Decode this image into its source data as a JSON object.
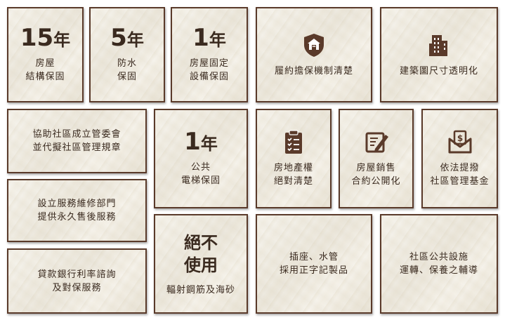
{
  "tiles": {
    "t_house15": {
      "number": "15",
      "unit": "年",
      "lines": [
        "房屋",
        "結構保固"
      ]
    },
    "t_water5": {
      "number": "5",
      "unit": "年",
      "lines": [
        "防水",
        "保固"
      ]
    },
    "t_fixed1": {
      "number": "1",
      "unit": "年",
      "lines": [
        "房屋固定",
        "設備保固"
      ]
    },
    "t_contract": {
      "icon": "shield-house-icon",
      "lines": [
        "履約擔保機制清楚"
      ]
    },
    "t_building": {
      "icon": "building-icon",
      "lines": [
        "建築圖尺寸透明化"
      ]
    },
    "t_assist": {
      "lines": [
        "協助社區成立管委會",
        "並代擬社區管理規章"
      ]
    },
    "t_elevator1": {
      "number": "1",
      "unit": "年",
      "lines": [
        "公共",
        "電梯保固"
      ]
    },
    "t_land": {
      "icon": "clipboard-checklist-icon",
      "lines": [
        "房地產權",
        "絕對清楚"
      ]
    },
    "t_sales": {
      "icon": "contract-pen-icon",
      "lines": [
        "房屋銷售",
        "合約公開化"
      ]
    },
    "t_fund": {
      "icon": "money-envelope-icon",
      "lines": [
        "依法提撥",
        "社區管理基金"
      ]
    },
    "t_service": {
      "lines": [
        "設立服務維修部門",
        "提供永久售後服務"
      ]
    },
    "t_nouse": {
      "headline": [
        "絕不",
        "使用"
      ],
      "lines": [
        "輻射鋼筋及海砂"
      ]
    },
    "t_socket": {
      "lines": [
        "插座、水管",
        "採用正字記製品"
      ]
    },
    "t_community": {
      "lines": [
        "社區公共設施",
        "運轉、保養之輔導"
      ]
    },
    "t_loan": {
      "lines": [
        "貸款銀行利率諮詢",
        "及對保服務"
      ]
    }
  },
  "colors": {
    "border": "#5a3a2a",
    "text": "#3a2a1f",
    "icon": "#5a3a2a"
  }
}
